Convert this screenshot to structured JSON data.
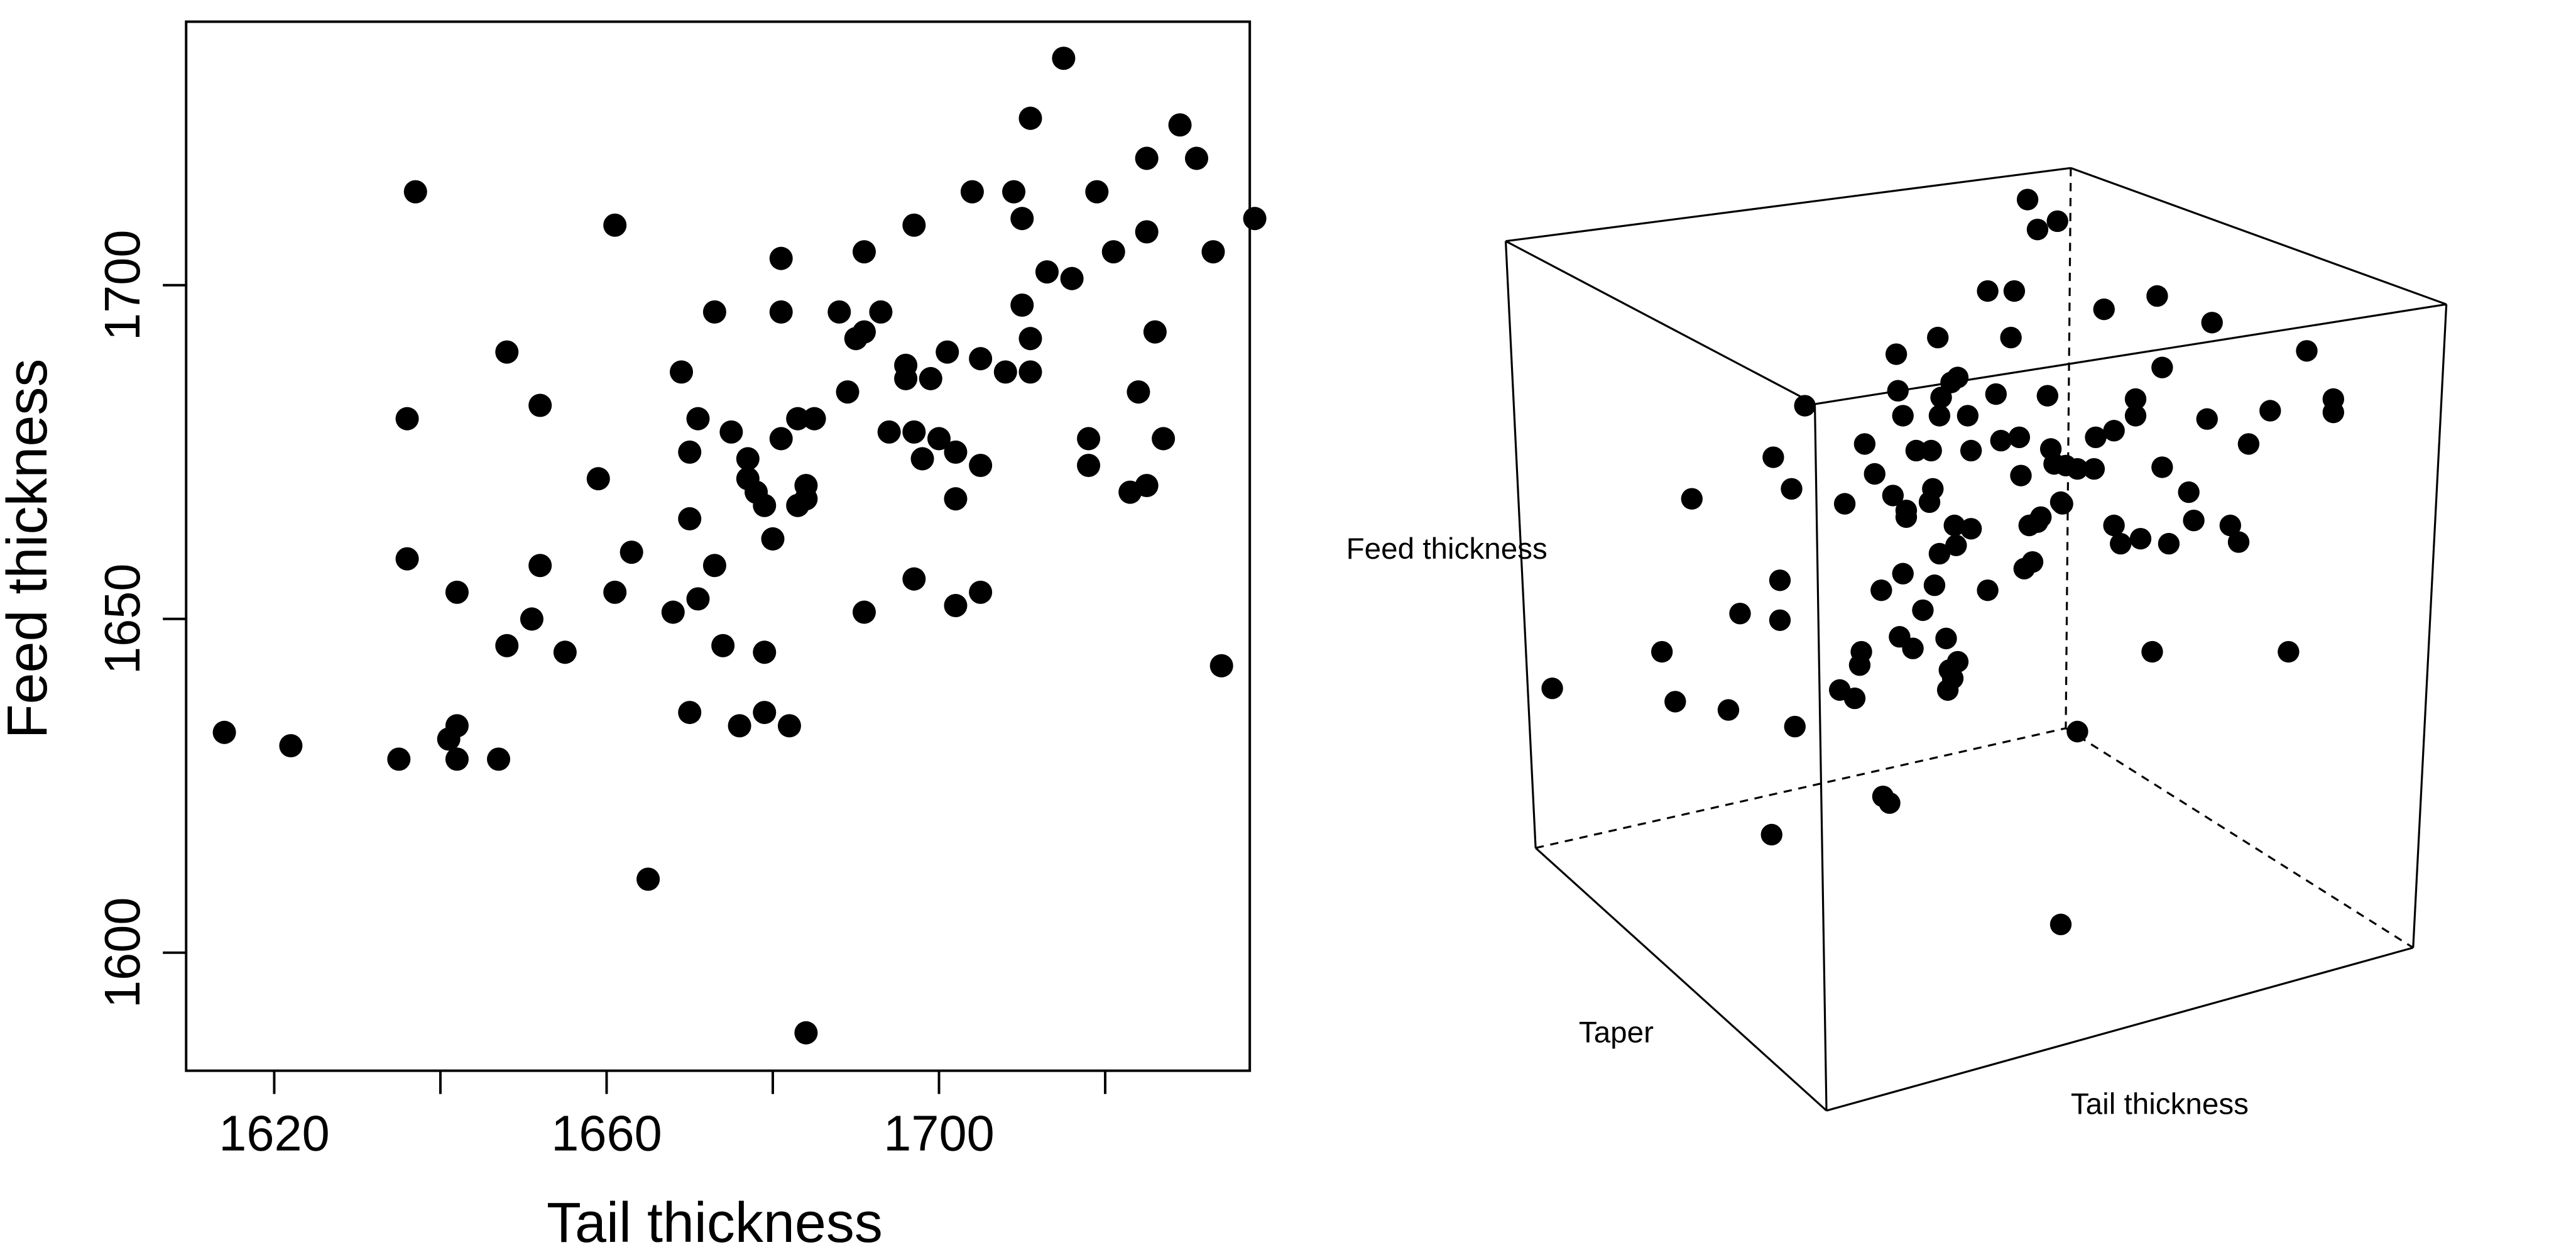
{
  "chart_data": [
    {
      "type": "scatter",
      "xlabel": "Tail thickness",
      "ylabel": "Feed thickness",
      "xticks": [
        1620,
        1660,
        1700
      ],
      "yticks": [
        1600,
        1650,
        1700
      ],
      "xlim": [
        1610,
        1738
      ],
      "ylim": [
        1582,
        1739
      ],
      "grid": false,
      "legend": "none",
      "marker_color": "#000000",
      "points": [
        [
          1614,
          1633
        ],
        [
          1622,
          1631
        ],
        [
          1635,
          1629
        ],
        [
          1637,
          1714
        ],
        [
          1636,
          1659
        ],
        [
          1636,
          1680
        ],
        [
          1641,
          1632
        ],
        [
          1642,
          1634
        ],
        [
          1642,
          1629
        ],
        [
          1642,
          1654
        ],
        [
          1647,
          1629
        ],
        [
          1648,
          1646
        ],
        [
          1648,
          1690
        ],
        [
          1651,
          1650
        ],
        [
          1652,
          1682
        ],
        [
          1652,
          1658
        ],
        [
          1655,
          1645
        ],
        [
          1659,
          1671
        ],
        [
          1661,
          1709
        ],
        [
          1661,
          1654
        ],
        [
          1663,
          1660
        ],
        [
          1665,
          1611
        ],
        [
          1668,
          1651
        ],
        [
          1669,
          1687
        ],
        [
          1670,
          1636
        ],
        [
          1670,
          1675
        ],
        [
          1670,
          1665
        ],
        [
          1671,
          1680
        ],
        [
          1671,
          1653
        ],
        [
          1673,
          1696
        ],
        [
          1673,
          1658
        ],
        [
          1674,
          1646
        ],
        [
          1675,
          1678
        ],
        [
          1676,
          1634
        ],
        [
          1677,
          1674
        ],
        [
          1677,
          1671
        ],
        [
          1678,
          1669
        ],
        [
          1679,
          1645
        ],
        [
          1679,
          1667
        ],
        [
          1679,
          1636
        ],
        [
          1680,
          1662
        ],
        [
          1681,
          1677
        ],
        [
          1681,
          1696
        ],
        [
          1681,
          1704
        ],
        [
          1682,
          1634
        ],
        [
          1683,
          1680
        ],
        [
          1683,
          1667
        ],
        [
          1684,
          1670
        ],
        [
          1684,
          1668
        ],
        [
          1685,
          1680
        ],
        [
          1684,
          1588
        ],
        [
          1688,
          1696
        ],
        [
          1689,
          1684
        ],
        [
          1690,
          1692
        ],
        [
          1691,
          1693
        ],
        [
          1691,
          1705
        ],
        [
          1691,
          1651
        ],
        [
          1693,
          1696
        ],
        [
          1694,
          1678
        ],
        [
          1696,
          1688
        ],
        [
          1696,
          1686
        ],
        [
          1697,
          1678
        ],
        [
          1697,
          1709
        ],
        [
          1697,
          1656
        ],
        [
          1698,
          1674
        ],
        [
          1699,
          1686
        ],
        [
          1700,
          1677
        ],
        [
          1701,
          1690
        ],
        [
          1702,
          1675
        ],
        [
          1702,
          1668
        ],
        [
          1702,
          1652
        ],
        [
          1704,
          1714
        ],
        [
          1705,
          1654
        ],
        [
          1705,
          1673
        ],
        [
          1705,
          1689
        ],
        [
          1708,
          1687
        ],
        [
          1709,
          1714
        ],
        [
          1710,
          1710
        ],
        [
          1710,
          1697
        ],
        [
          1711,
          1725
        ],
        [
          1711,
          1687
        ],
        [
          1711,
          1692
        ],
        [
          1713,
          1702
        ],
        [
          1715,
          1734
        ],
        [
          1716,
          1701
        ],
        [
          1718,
          1677
        ],
        [
          1718,
          1673
        ],
        [
          1719,
          1714
        ],
        [
          1721,
          1705
        ],
        [
          1723,
          1669
        ],
        [
          1724,
          1684
        ],
        [
          1725,
          1670
        ],
        [
          1725,
          1719
        ],
        [
          1725,
          1708
        ],
        [
          1726,
          1693
        ],
        [
          1727,
          1677
        ],
        [
          1729,
          1724
        ],
        [
          1731,
          1719
        ],
        [
          1733,
          1705
        ],
        [
          1734,
          1643
        ],
        [
          1738,
          1710
        ]
      ]
    },
    {
      "type": "scatter",
      "projection": "3d",
      "xlabel": "Tail thickness",
      "ylabel": "Taper",
      "zlabel": "Feed thickness",
      "grid": false,
      "legend": "none",
      "box": "full",
      "marker_color": "#000000",
      "points_projected": [
        [
          934,
          414
        ],
        [
          1000,
          392
        ],
        [
          1008,
          422
        ],
        [
          1018,
          300
        ],
        [
          1040,
          427
        ],
        [
          1047,
          369
        ],
        [
          1066,
          502
        ],
        [
          1067,
          275
        ],
        [
          1071,
          373
        ],
        [
          1071,
          349
        ],
        [
          1078,
          294
        ],
        [
          1080,
          437
        ],
        [
          1086,
          244
        ],
        [
          1107,
          415
        ],
        [
          1110,
          303
        ],
        [
          1116,
          420
        ],
        [
          1119,
          400
        ],
        [
          1120,
          392
        ],
        [
          1122,
          267
        ],
        [
          1128,
          285
        ],
        [
          1132,
          355
        ],
        [
          1133,
          479
        ],
        [
          1137,
          483
        ],
        [
          1139,
          298
        ],
        [
          1141,
          213
        ],
        [
          1142,
          235
        ],
        [
          1143,
          383
        ],
        [
          1145,
          250
        ],
        [
          1145,
          345
        ],
        [
          1147,
          307
        ],
        [
          1147,
          311
        ],
        [
          1151,
          390
        ],
        [
          1153,
          271
        ],
        [
          1157,
          367
        ],
        [
          1161,
          302
        ],
        [
          1162,
          271
        ],
        [
          1163,
          294
        ],
        [
          1164,
          352
        ],
        [
          1166,
          203
        ],
        [
          1167,
          333
        ],
        [
          1167,
          250
        ],
        [
          1168,
          239
        ],
        [
          1171,
          384
        ],
        [
          1172,
          415
        ],
        [
          1173,
          403
        ],
        [
          1174,
          230
        ],
        [
          1175,
          408
        ],
        [
          1176,
          316
        ],
        [
          1177,
          328
        ],
        [
          1178,
          398
        ],
        [
          1178,
          227
        ],
        [
          1184,
          250
        ],
        [
          1186,
          271
        ],
        [
          1186,
          318
        ],
        [
          1196,
          355
        ],
        [
          1196,
          175
        ],
        [
          1201,
          237
        ],
        [
          1204,
          265
        ],
        [
          1210,
          203
        ],
        [
          1212,
          175
        ],
        [
          1215,
          263
        ],
        [
          1216,
          286
        ],
        [
          1218,
          342
        ],
        [
          1220,
          120
        ],
        [
          1221,
          316
        ],
        [
          1223,
          338
        ],
        [
          1226,
          314
        ],
        [
          1226,
          138
        ],
        [
          1228,
          311
        ],
        [
          1232,
          238
        ],
        [
          1234,
          270
        ],
        [
          1236,
          279
        ],
        [
          1238,
          133
        ],
        [
          1240,
          302
        ],
        [
          1241,
          303
        ],
        [
          1243,
          280
        ],
        [
          1250,
          282
        ],
        [
          1260,
          282
        ],
        [
          1261,
          263
        ],
        [
          1266,
          186
        ],
        [
          1272,
          259
        ],
        [
          1272,
          316
        ],
        [
          1276,
          327
        ],
        [
          1285,
          240
        ],
        [
          1285,
          250
        ],
        [
          1288,
          324
        ],
        [
          1295,
          392
        ],
        [
          1298,
          178
        ],
        [
          1301,
          221
        ],
        [
          1301,
          281
        ],
        [
          1305,
          327
        ],
        [
          1317,
          296
        ],
        [
          1320,
          313
        ],
        [
          1328,
          252
        ],
        [
          1331,
          194
        ],
        [
          1342,
          316
        ],
        [
          1347,
          326
        ],
        [
          1353,
          267
        ],
        [
          1366,
          247
        ],
        [
          1377,
          392
        ],
        [
          1388,
          211
        ],
        [
          1404,
          240
        ],
        [
          1404,
          248
        ],
        [
          1240,
          556
        ],
        [
          1250,
          440
        ]
      ]
    }
  ]
}
